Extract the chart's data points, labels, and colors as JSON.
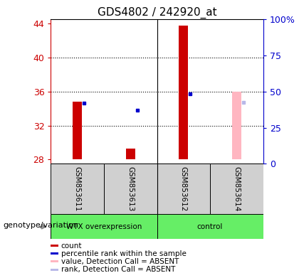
{
  "title": "GDS4802 / 242920_at",
  "samples": [
    "GSM853611",
    "GSM853613",
    "GSM853612",
    "GSM853614"
  ],
  "ylim_left": [
    27.5,
    44.5
  ],
  "ylim_right": [
    0,
    100
  ],
  "yticks_left": [
    28,
    32,
    36,
    40,
    44
  ],
  "yticks_right": [
    0,
    25,
    50,
    75,
    100
  ],
  "ytick_labels_right": [
    "0",
    "25",
    "50",
    "75",
    "100%"
  ],
  "bar_bottom": 28,
  "red_bars": [
    34.8,
    29.3,
    43.7,
    null
  ],
  "blue_markers": [
    34.6,
    33.8,
    35.7,
    null
  ],
  "pink_bars": [
    null,
    null,
    null,
    36.0
  ],
  "lavender_markers": [
    null,
    null,
    null,
    34.7
  ],
  "red_color": "#cc0000",
  "blue_color": "#0000cc",
  "pink_color": "#ffb6c1",
  "lavender_color": "#b8b8e8",
  "green_color": "#66ee66",
  "gray_color": "#d0d0d0",
  "bar_width": 0.18,
  "group_names": [
    "WTX overexpression",
    "control"
  ],
  "legend_labels": [
    "count",
    "percentile rank within the sample",
    "value, Detection Call = ABSENT",
    "rank, Detection Call = ABSENT"
  ],
  "legend_colors": [
    "#cc0000",
    "#0000cc",
    "#ffb6c1",
    "#b8b8e8"
  ],
  "xlabel_group": "genotype/variation"
}
